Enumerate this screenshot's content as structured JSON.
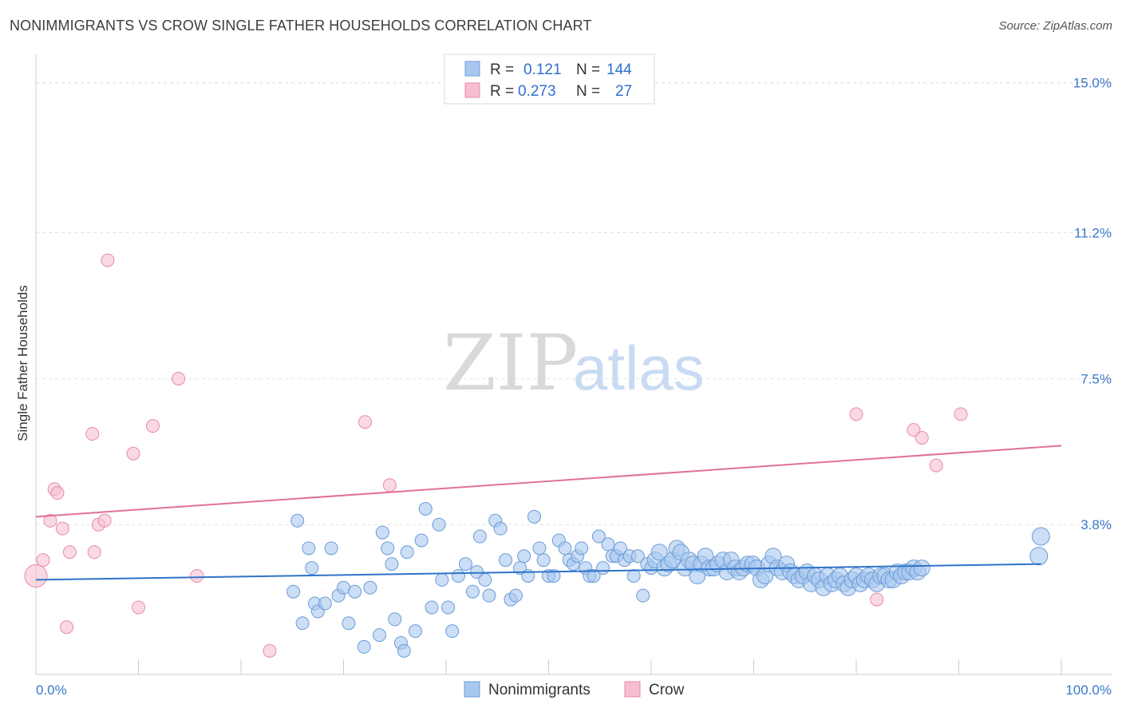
{
  "title": "NONIMMIGRANTS VS CROW SINGLE FATHER HOUSEHOLDS CORRELATION CHART",
  "source": "Source: ZipAtlas.com",
  "watermark": {
    "zip": "ZIP",
    "atlas": "atlas"
  },
  "chart_data": {
    "type": "scatter",
    "title": "NONIMMIGRANTS VS CROW SINGLE FATHER HOUSEHOLDS CORRELATION CHART",
    "xlabel": "",
    "ylabel": "Single Father Households",
    "xlim": [
      0,
      100
    ],
    "ylim": [
      0,
      15.5
    ],
    "x_tick_labels": [
      "0.0%",
      "100.0%"
    ],
    "y_ticks": [
      3.8,
      7.5,
      11.2,
      15.0
    ],
    "y_tick_labels": [
      "3.8%",
      "7.5%",
      "11.2%",
      "15.0%"
    ],
    "grid": true,
    "legend": {
      "placement": "top-center",
      "entries": [
        {
          "r_label": "R =",
          "r_value": "0.121",
          "n_label": "N =",
          "n_value": "144"
        },
        {
          "r_label": "R =",
          "r_value": "0.273",
          "n_label": "N =",
          "n_value": "27"
        }
      ]
    },
    "colors": {
      "blue_fill": "#a9c8ef",
      "blue_stroke": "#6b9bd8",
      "blue_line": "#2f73c9",
      "pink_fill": "#f6bfd0",
      "pink_stroke": "#e88aa8",
      "pink_line": "#e0709a"
    },
    "series": [
      {
        "name": "Nonimmigrants",
        "trend": {
          "x": [
            0,
            98
          ],
          "y": [
            2.4,
            2.8
          ]
        },
        "points": [
          {
            "x": 25.1,
            "y": 2.1
          },
          {
            "x": 25.5,
            "y": 3.9
          },
          {
            "x": 26.0,
            "y": 1.3
          },
          {
            "x": 26.6,
            "y": 3.2
          },
          {
            "x": 26.9,
            "y": 2.7
          },
          {
            "x": 27.2,
            "y": 1.8
          },
          {
            "x": 27.5,
            "y": 1.6
          },
          {
            "x": 28.2,
            "y": 1.8
          },
          {
            "x": 28.8,
            "y": 3.2
          },
          {
            "x": 29.5,
            "y": 2.0
          },
          {
            "x": 30.0,
            "y": 2.2
          },
          {
            "x": 30.5,
            "y": 1.3
          },
          {
            "x": 31.1,
            "y": 2.1
          },
          {
            "x": 32.0,
            "y": 0.7
          },
          {
            "x": 32.6,
            "y": 2.2
          },
          {
            "x": 33.5,
            "y": 1.0
          },
          {
            "x": 33.8,
            "y": 3.6
          },
          {
            "x": 34.3,
            "y": 3.2
          },
          {
            "x": 34.7,
            "y": 2.8
          },
          {
            "x": 35.0,
            "y": 1.4
          },
          {
            "x": 35.6,
            "y": 0.8
          },
          {
            "x": 35.9,
            "y": 0.6
          },
          {
            "x": 36.2,
            "y": 3.1
          },
          {
            "x": 37.0,
            "y": 1.1
          },
          {
            "x": 37.6,
            "y": 3.4
          },
          {
            "x": 38.0,
            "y": 4.2
          },
          {
            "x": 38.6,
            "y": 1.7
          },
          {
            "x": 39.3,
            "y": 3.8
          },
          {
            "x": 39.6,
            "y": 2.4
          },
          {
            "x": 40.2,
            "y": 1.7
          },
          {
            "x": 40.6,
            "y": 1.1
          },
          {
            "x": 41.2,
            "y": 2.5
          },
          {
            "x": 41.9,
            "y": 2.8
          },
          {
            "x": 42.6,
            "y": 2.1
          },
          {
            "x": 43.0,
            "y": 2.6
          },
          {
            "x": 43.3,
            "y": 3.5
          },
          {
            "x": 43.8,
            "y": 2.4
          },
          {
            "x": 44.2,
            "y": 2.0
          },
          {
            "x": 44.8,
            "y": 3.9
          },
          {
            "x": 45.3,
            "y": 3.7
          },
          {
            "x": 45.8,
            "y": 2.9
          },
          {
            "x": 46.3,
            "y": 1.9
          },
          {
            "x": 46.8,
            "y": 2.0
          },
          {
            "x": 47.2,
            "y": 2.7
          },
          {
            "x": 47.6,
            "y": 3.0
          },
          {
            "x": 48.0,
            "y": 2.5
          },
          {
            "x": 48.6,
            "y": 4.0
          },
          {
            "x": 49.1,
            "y": 3.2
          },
          {
            "x": 49.5,
            "y": 2.9
          },
          {
            "x": 50.0,
            "y": 2.5
          },
          {
            "x": 50.5,
            "y": 2.5
          },
          {
            "x": 51.0,
            "y": 3.4
          },
          {
            "x": 51.6,
            "y": 3.2
          },
          {
            "x": 52.0,
            "y": 2.9
          },
          {
            "x": 52.4,
            "y": 2.8
          },
          {
            "x": 52.8,
            "y": 3.0
          },
          {
            "x": 53.2,
            "y": 3.2
          },
          {
            "x": 53.6,
            "y": 2.7
          },
          {
            "x": 54.0,
            "y": 2.5
          },
          {
            "x": 54.4,
            "y": 2.5
          },
          {
            "x": 54.9,
            "y": 3.5
          },
          {
            "x": 55.3,
            "y": 2.7
          },
          {
            "x": 55.8,
            "y": 3.3
          },
          {
            "x": 56.2,
            "y": 3.0
          },
          {
            "x": 56.6,
            "y": 3.0
          },
          {
            "x": 57.0,
            "y": 3.2
          },
          {
            "x": 57.4,
            "y": 2.9
          },
          {
            "x": 57.9,
            "y": 3.0
          },
          {
            "x": 58.3,
            "y": 2.5
          },
          {
            "x": 58.7,
            "y": 3.0
          },
          {
            "x": 59.2,
            "y": 2.0
          },
          {
            "x": 59.6,
            "y": 2.8
          },
          {
            "x": 60.0,
            "y": 2.7
          },
          {
            "x": 60.4,
            "y": 2.9
          },
          {
            "x": 60.8,
            "y": 3.1
          },
          {
            "x": 61.3,
            "y": 2.7
          },
          {
            "x": 61.7,
            "y": 2.8
          },
          {
            "x": 62.1,
            "y": 2.9
          },
          {
            "x": 62.5,
            "y": 3.2
          },
          {
            "x": 62.9,
            "y": 3.1
          },
          {
            "x": 63.3,
            "y": 2.7
          },
          {
            "x": 63.7,
            "y": 2.9
          },
          {
            "x": 64.1,
            "y": 2.8
          },
          {
            "x": 64.5,
            "y": 2.5
          },
          {
            "x": 64.9,
            "y": 2.8
          },
          {
            "x": 65.3,
            "y": 3.0
          },
          {
            "x": 65.7,
            "y": 2.7
          },
          {
            "x": 66.1,
            "y": 2.7
          },
          {
            "x": 66.5,
            "y": 2.8
          },
          {
            "x": 67.0,
            "y": 2.9
          },
          {
            "x": 67.4,
            "y": 2.6
          },
          {
            "x": 67.8,
            "y": 2.9
          },
          {
            "x": 68.2,
            "y": 2.7
          },
          {
            "x": 68.6,
            "y": 2.6
          },
          {
            "x": 69.0,
            "y": 2.7
          },
          {
            "x": 69.4,
            "y": 2.8
          },
          {
            "x": 69.9,
            "y": 2.8
          },
          {
            "x": 70.3,
            "y": 2.7
          },
          {
            "x": 70.7,
            "y": 2.4
          },
          {
            "x": 71.1,
            "y": 2.5
          },
          {
            "x": 71.5,
            "y": 2.8
          },
          {
            "x": 71.9,
            "y": 3.0
          },
          {
            "x": 72.3,
            "y": 2.7
          },
          {
            "x": 72.8,
            "y": 2.6
          },
          {
            "x": 73.2,
            "y": 2.8
          },
          {
            "x": 73.6,
            "y": 2.6
          },
          {
            "x": 74.0,
            "y": 2.5
          },
          {
            "x": 74.4,
            "y": 2.4
          },
          {
            "x": 74.8,
            "y": 2.5
          },
          {
            "x": 75.2,
            "y": 2.6
          },
          {
            "x": 75.6,
            "y": 2.3
          },
          {
            "x": 76.0,
            "y": 2.5
          },
          {
            "x": 76.4,
            "y": 2.4
          },
          {
            "x": 76.8,
            "y": 2.2
          },
          {
            "x": 77.2,
            "y": 2.5
          },
          {
            "x": 77.6,
            "y": 2.3
          },
          {
            "x": 78.0,
            "y": 2.4
          },
          {
            "x": 78.4,
            "y": 2.5
          },
          {
            "x": 78.8,
            "y": 2.3
          },
          {
            "x": 79.2,
            "y": 2.2
          },
          {
            "x": 79.6,
            "y": 2.4
          },
          {
            "x": 80.0,
            "y": 2.5
          },
          {
            "x": 80.4,
            "y": 2.3
          },
          {
            "x": 80.8,
            "y": 2.4
          },
          {
            "x": 81.2,
            "y": 2.5
          },
          {
            "x": 81.6,
            "y": 2.4
          },
          {
            "x": 82.0,
            "y": 2.3
          },
          {
            "x": 82.4,
            "y": 2.5
          },
          {
            "x": 82.8,
            "y": 2.5
          },
          {
            "x": 83.2,
            "y": 2.4
          },
          {
            "x": 83.6,
            "y": 2.4
          },
          {
            "x": 84.0,
            "y": 2.6
          },
          {
            "x": 84.4,
            "y": 2.5
          },
          {
            "x": 84.8,
            "y": 2.6
          },
          {
            "x": 85.2,
            "y": 2.6
          },
          {
            "x": 85.6,
            "y": 2.7
          },
          {
            "x": 86.0,
            "y": 2.6
          },
          {
            "x": 86.4,
            "y": 2.7
          },
          {
            "x": 98.0,
            "y": 3.5
          },
          {
            "x": 97.8,
            "y": 3.0
          }
        ]
      },
      {
        "name": "Crow",
        "trend": {
          "x": [
            0,
            100
          ],
          "y": [
            4.0,
            5.8
          ]
        },
        "points": [
          {
            "x": 0.0,
            "y": 2.5
          },
          {
            "x": 0.7,
            "y": 2.9
          },
          {
            "x": 1.4,
            "y": 3.9
          },
          {
            "x": 1.8,
            "y": 4.7
          },
          {
            "x": 2.1,
            "y": 4.6
          },
          {
            "x": 2.6,
            "y": 3.7
          },
          {
            "x": 3.0,
            "y": 1.2
          },
          {
            "x": 3.3,
            "y": 3.1
          },
          {
            "x": 5.5,
            "y": 6.1
          },
          {
            "x": 5.7,
            "y": 3.1
          },
          {
            "x": 6.1,
            "y": 3.8
          },
          {
            "x": 6.7,
            "y": 3.9
          },
          {
            "x": 7.0,
            "y": 10.5
          },
          {
            "x": 9.5,
            "y": 5.6
          },
          {
            "x": 10.0,
            "y": 1.7
          },
          {
            "x": 11.4,
            "y": 6.3
          },
          {
            "x": 13.9,
            "y": 7.5
          },
          {
            "x": 15.7,
            "y": 2.5
          },
          {
            "x": 22.8,
            "y": 0.6
          },
          {
            "x": 32.1,
            "y": 6.4
          },
          {
            "x": 34.5,
            "y": 4.8
          },
          {
            "x": 80.0,
            "y": 6.6
          },
          {
            "x": 82.0,
            "y": 1.9
          },
          {
            "x": 85.6,
            "y": 6.2
          },
          {
            "x": 86.4,
            "y": 6.0
          },
          {
            "x": 87.8,
            "y": 5.3
          },
          {
            "x": 90.2,
            "y": 6.6
          }
        ]
      }
    ]
  }
}
